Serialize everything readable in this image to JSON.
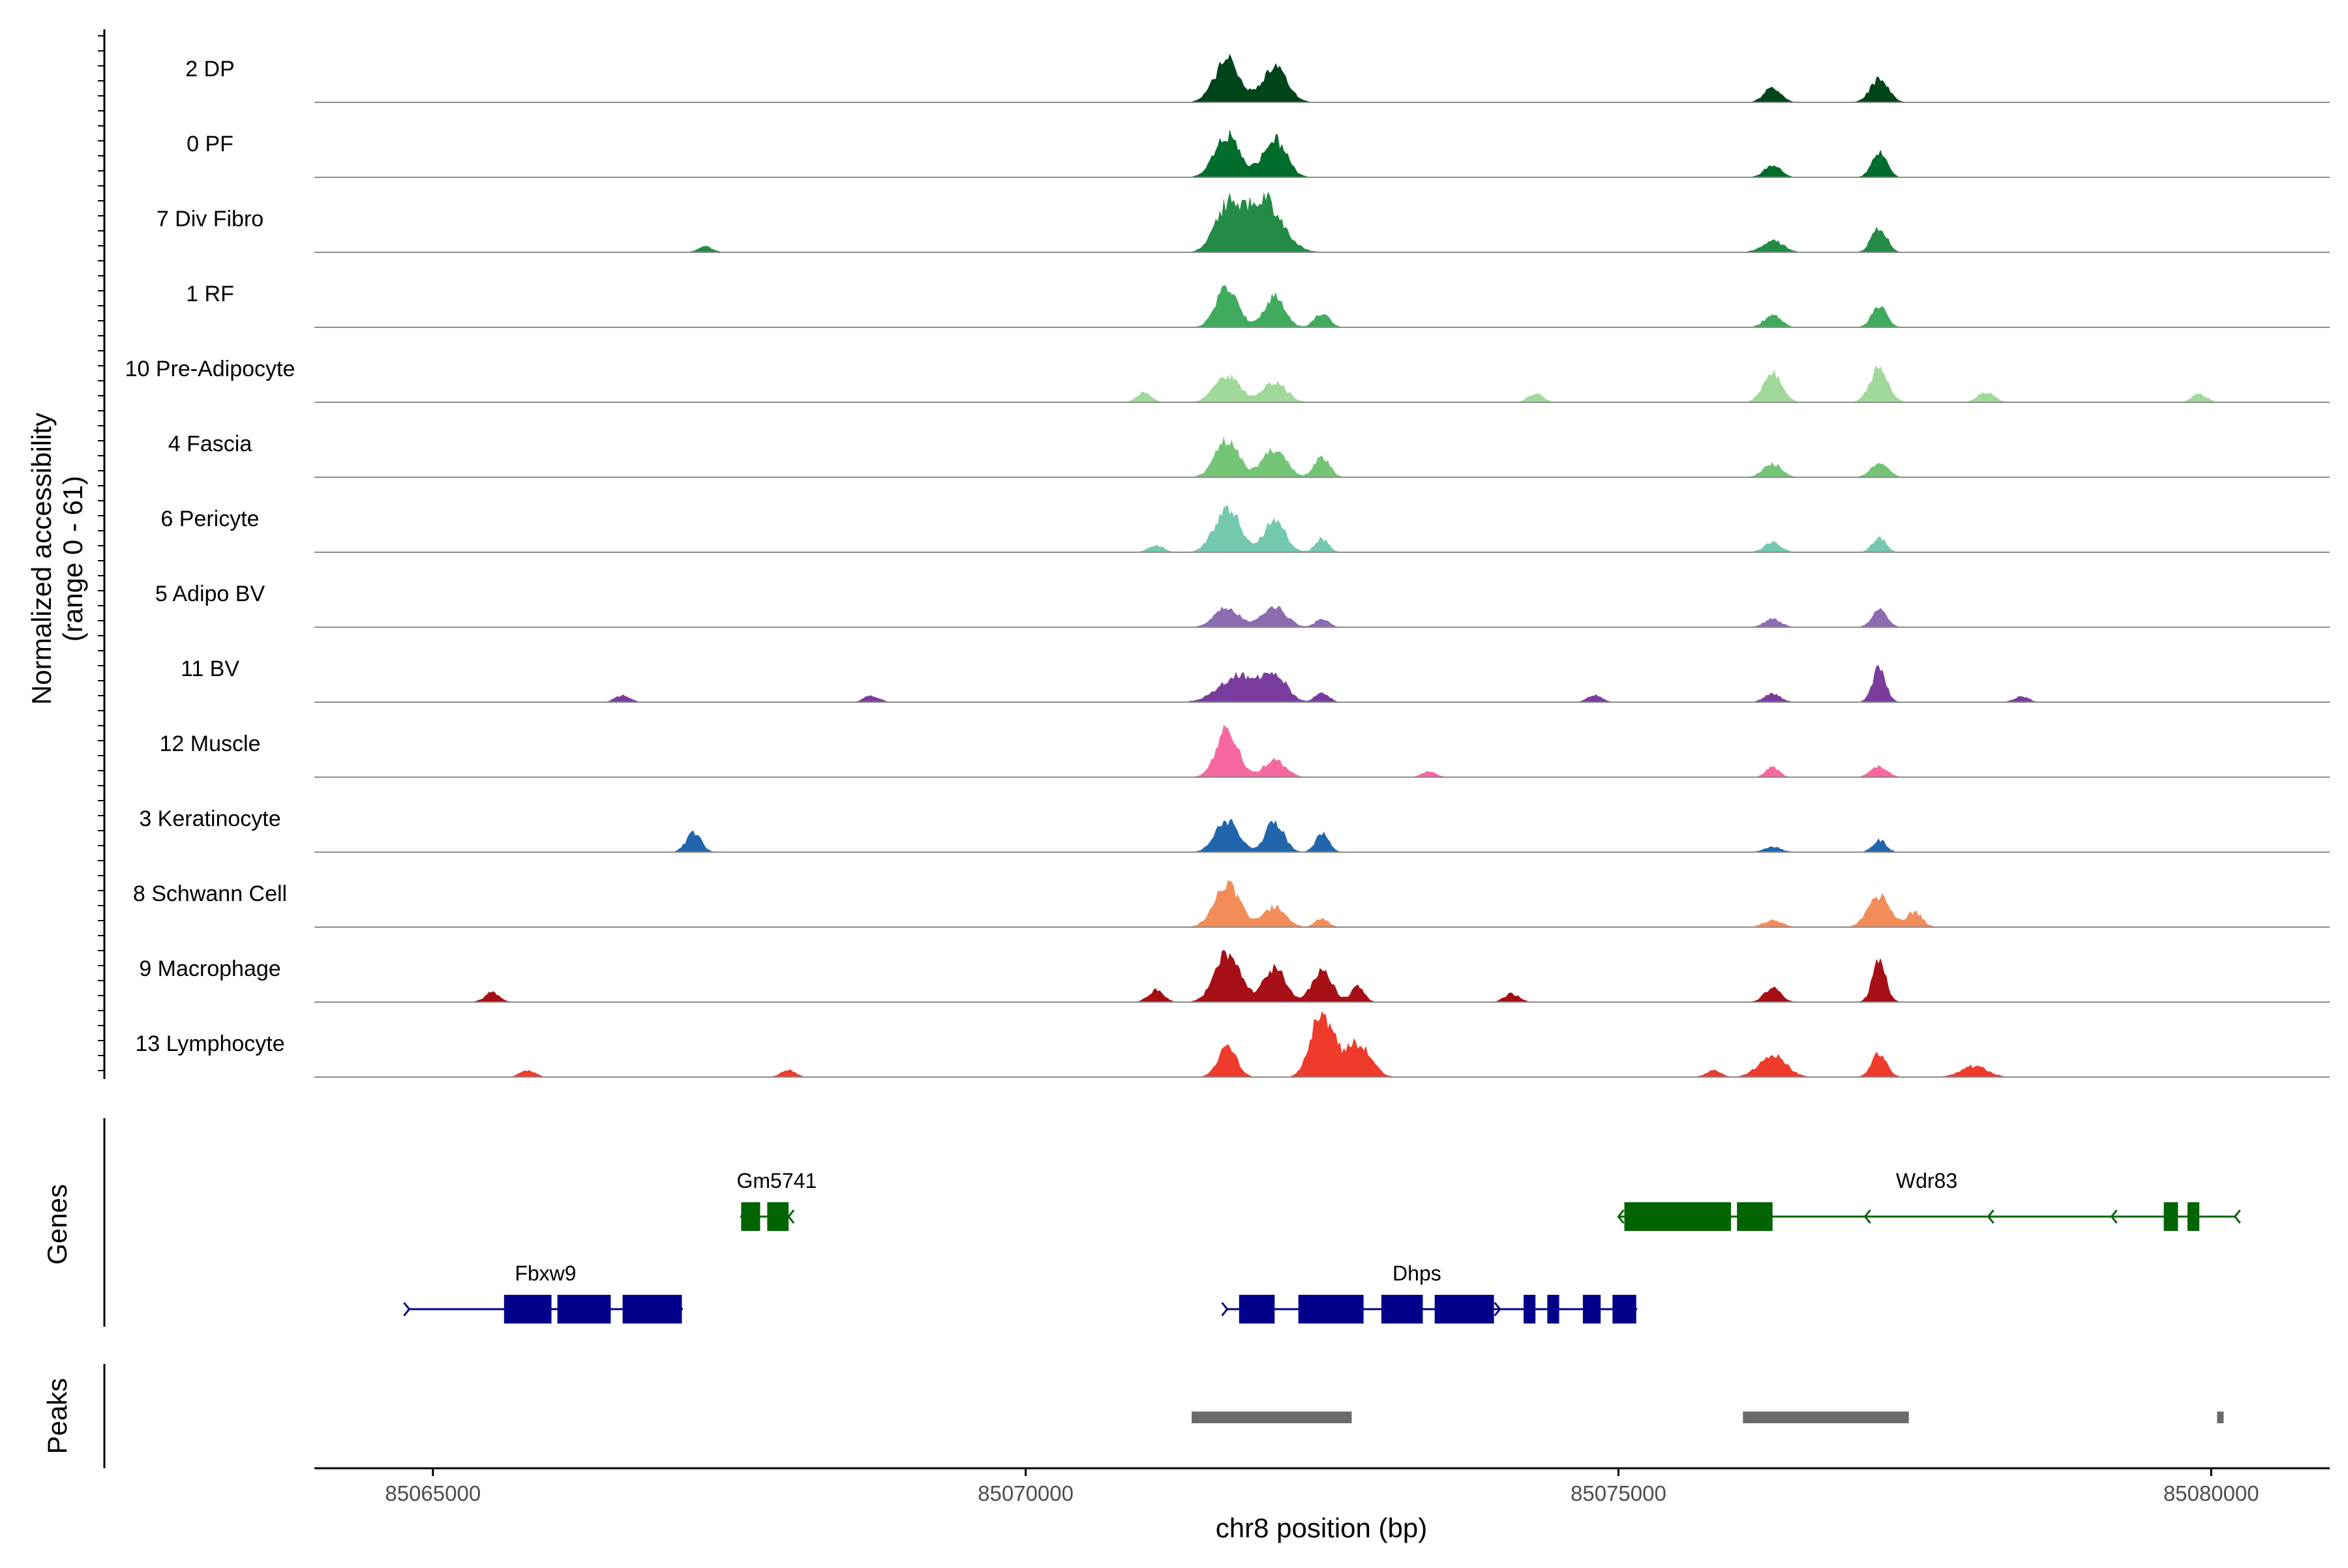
{
  "chart_data": {
    "type": "area",
    "title": "",
    "ylabel_line1": "Normalized accessibility",
    "ylabel_line2": "(range 0 - 61)",
    "xlabel": "chr8 position (bp)",
    "xlim": [
      85064000,
      85081000
    ],
    "ylim": [
      0,
      61
    ],
    "xticks": [
      85065000,
      85070000,
      85075000,
      85080000
    ],
    "xtick_labels": [
      "85065000",
      "85070000",
      "85075000",
      "85080000"
    ],
    "genes_label": "Genes",
    "peaks_label": "Peaks",
    "tracks": [
      {
        "name": "2 DP",
        "color": "#00441b",
        "peaks": [
          [
            85071700,
            0.62,
            150
          ],
          [
            85072100,
            0.52,
            150
          ],
          [
            85076300,
            0.22,
            100
          ],
          [
            85077200,
            0.33,
            110
          ]
        ],
        "islands": []
      },
      {
        "name": "0 PF",
        "color": "#006d2c",
        "peaks": [
          [
            85071700,
            0.62,
            150
          ],
          [
            85072100,
            0.55,
            140
          ],
          [
            85076300,
            0.18,
            100
          ],
          [
            85077200,
            0.38,
            90
          ]
        ],
        "islands": []
      },
      {
        "name": "7 Div Fibro",
        "color": "#238b45",
        "peaks": [
          [
            85071700,
            0.62,
            150
          ],
          [
            85072000,
            0.78,
            220
          ],
          [
            85076300,
            0.17,
            130
          ],
          [
            85077200,
            0.38,
            90
          ]
        ],
        "islands": [
          [
            85067300,
            0.08
          ]
        ]
      },
      {
        "name": "1 RF",
        "color": "#41ab5d",
        "peaks": [
          [
            85071700,
            0.6,
            130
          ],
          [
            85072100,
            0.45,
            120
          ],
          [
            85072500,
            0.2,
            90
          ],
          [
            85076300,
            0.18,
            100
          ],
          [
            85077200,
            0.3,
            90
          ]
        ],
        "islands": []
      },
      {
        "name": "10 Pre-Adipocyte",
        "color": "#a1d99b",
        "peaks": [
          [
            85071700,
            0.38,
            150
          ],
          [
            85072100,
            0.3,
            140
          ],
          [
            85076300,
            0.45,
            110
          ],
          [
            85077200,
            0.48,
            110
          ],
          [
            85078100,
            0.15,
            100
          ]
        ],
        "islands": [
          [
            85071000,
            0.15
          ],
          [
            85074300,
            0.12
          ],
          [
            85079900,
            0.12
          ]
        ]
      },
      {
        "name": "4 Fascia",
        "color": "#74c476",
        "peaks": [
          [
            85071700,
            0.55,
            140
          ],
          [
            85072100,
            0.42,
            140
          ],
          [
            85072500,
            0.3,
            90
          ],
          [
            85076300,
            0.2,
            110
          ],
          [
            85077200,
            0.22,
            100
          ]
        ],
        "islands": []
      },
      {
        "name": "6 Pericyte",
        "color": "#74c8b0",
        "peaks": [
          [
            85071700,
            0.65,
            150
          ],
          [
            85072100,
            0.45,
            130
          ],
          [
            85072500,
            0.2,
            80
          ],
          [
            85076300,
            0.15,
            100
          ],
          [
            85077200,
            0.22,
            80
          ]
        ],
        "islands": [
          [
            85071100,
            0.1
          ]
        ]
      },
      {
        "name": "5 Adipo BV",
        "color": "#8c6bb1",
        "peaks": [
          [
            85071700,
            0.28,
            150
          ],
          [
            85072100,
            0.3,
            140
          ],
          [
            85072500,
            0.12,
            80
          ],
          [
            85076300,
            0.12,
            100
          ],
          [
            85077200,
            0.25,
            90
          ]
        ],
        "islands": []
      },
      {
        "name": "11 BV",
        "color": "#7a3d9e",
        "peaks": [
          [
            85071800,
            0.4,
            230
          ],
          [
            85072100,
            0.4,
            140
          ],
          [
            85072500,
            0.15,
            80
          ],
          [
            85076300,
            0.12,
            100
          ],
          [
            85077200,
            0.5,
            80
          ]
        ],
        "islands": [
          [
            85066600,
            0.1
          ],
          [
            85068700,
            0.1
          ],
          [
            85074800,
            0.1
          ],
          [
            85078400,
            0.08
          ]
        ]
      },
      {
        "name": "12 Muscle",
        "color": "#f768a1",
        "peaks": [
          [
            85071700,
            0.7,
            130
          ],
          [
            85072100,
            0.25,
            130
          ],
          [
            85076300,
            0.15,
            80
          ],
          [
            85077200,
            0.15,
            100
          ]
        ],
        "islands": [
          [
            85073400,
            0.08
          ]
        ]
      },
      {
        "name": "3 Keratinocyte",
        "color": "#2166ac",
        "peaks": [
          [
            85071700,
            0.45,
            140
          ],
          [
            85072100,
            0.45,
            110
          ],
          [
            85072500,
            0.28,
            80
          ],
          [
            85076300,
            0.08,
            100
          ],
          [
            85077200,
            0.18,
            80
          ]
        ],
        "islands": [
          [
            85067200,
            0.28
          ]
        ]
      },
      {
        "name": "8 Schwann Cell",
        "color": "#f28c58",
        "peaks": [
          [
            85071700,
            0.65,
            150
          ],
          [
            85072100,
            0.3,
            130
          ],
          [
            85072500,
            0.12,
            80
          ],
          [
            85076300,
            0.1,
            110
          ],
          [
            85077200,
            0.45,
            130
          ],
          [
            85077500,
            0.22,
            90
          ]
        ],
        "islands": []
      },
      {
        "name": "9 Macrophage",
        "color": "#a50f15",
        "peaks": [
          [
            85071700,
            0.7,
            150
          ],
          [
            85072100,
            0.5,
            130
          ],
          [
            85072500,
            0.45,
            120
          ],
          [
            85072800,
            0.22,
            80
          ],
          [
            85076300,
            0.2,
            100
          ],
          [
            85077200,
            0.6,
            80
          ]
        ],
        "islands": [
          [
            85065500,
            0.14
          ],
          [
            85071100,
            0.18
          ],
          [
            85074100,
            0.12
          ]
        ]
      },
      {
        "name": "13 Lymphocyte",
        "color": "#ef3b2c",
        "peaks": [
          [
            85071700,
            0.45,
            110
          ],
          [
            85072500,
            0.95,
            130
          ],
          [
            85072800,
            0.5,
            150
          ],
          [
            85076300,
            0.32,
            160
          ],
          [
            85077200,
            0.35,
            90
          ],
          [
            85078000,
            0.16,
            160
          ]
        ],
        "islands": [
          [
            85065800,
            0.1
          ],
          [
            85068000,
            0.1
          ],
          [
            85075800,
            0.1
          ]
        ]
      }
    ],
    "genes": [
      {
        "name": "Gm5741",
        "color": "#006400",
        "strand": "-",
        "row": 0,
        "start": 85067600,
        "end": 85068000,
        "exons": [
          [
            85067600,
            85067760
          ],
          [
            85067820,
            85068000
          ]
        ]
      },
      {
        "name": "Wdr83",
        "color": "#006400",
        "strand": "-",
        "row": 0,
        "start": 85075000,
        "end": 85080200,
        "exons": [
          [
            85075050,
            85075950
          ],
          [
            85076000,
            85076300
          ],
          [
            85079600,
            85079720
          ],
          [
            85079800,
            85079900
          ]
        ]
      },
      {
        "name": "Fbxw9",
        "color": "#00008b",
        "strand": "+",
        "row": 1,
        "start": 85064800,
        "end": 85067100,
        "exons": [
          [
            85065600,
            85066000
          ],
          [
            85066050,
            85066500
          ],
          [
            85066600,
            85067100
          ]
        ]
      },
      {
        "name": "Dhps",
        "color": "#00008b",
        "strand": "+",
        "row": 1,
        "start": 85071700,
        "end": 85075150,
        "exons": [
          [
            85071800,
            85072100
          ],
          [
            85072300,
            85072850
          ],
          [
            85073000,
            85073350
          ],
          [
            85073450,
            85073950
          ],
          [
            85074200,
            85074300
          ],
          [
            85074400,
            85074500
          ],
          [
            85074700,
            85074850
          ],
          [
            85074950,
            85075150
          ]
        ]
      }
    ],
    "peaks": [
      [
        85071400,
        85072750
      ],
      [
        85076050,
        85077450
      ],
      [
        85080050,
        85080100
      ]
    ]
  }
}
